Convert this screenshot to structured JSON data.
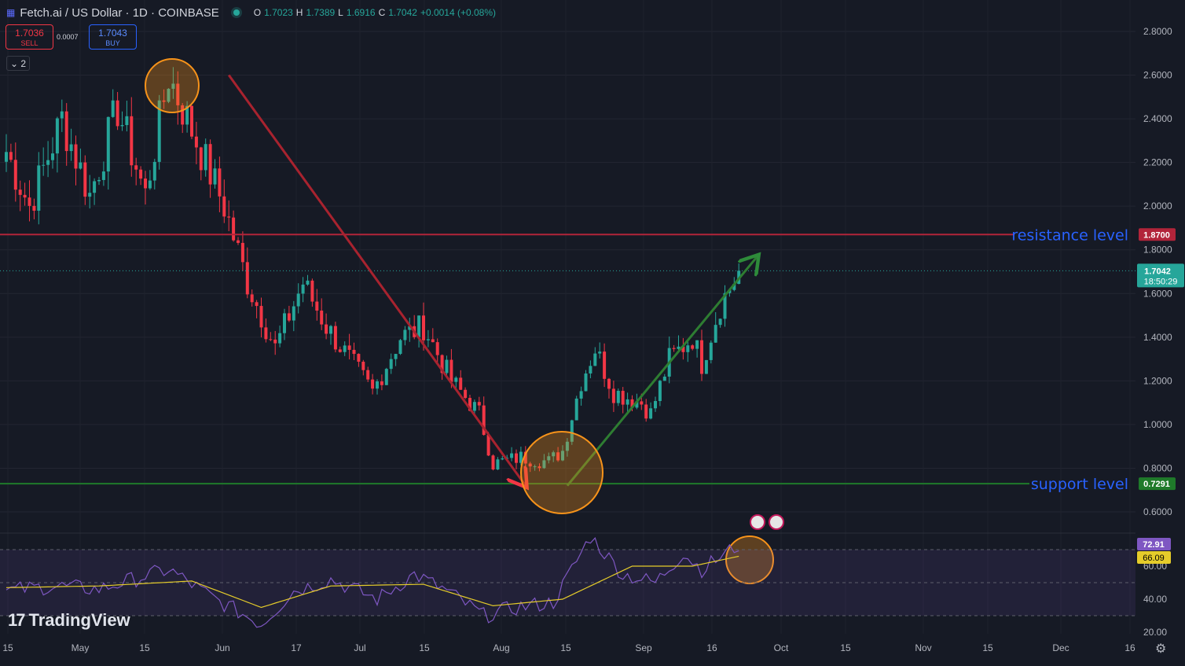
{
  "header": {
    "symbol_label": "Fetch.ai / US Dollar · 1D · COINBASE",
    "ohlc": [
      {
        "k": "O",
        "v": "1.7023"
      },
      {
        "k": "H",
        "v": "1.7389"
      },
      {
        "k": "L",
        "v": "1.6916"
      },
      {
        "k": "C",
        "v": "1.7042"
      }
    ],
    "change": "+0.0014 (+0.08%)",
    "sell_price": "1.7036",
    "sell_label": "SELL",
    "buy_price": "1.7043",
    "buy_label": "BUY",
    "spread": "0.0007",
    "indicator_count": "2",
    "logo_text": "TradingView"
  },
  "colors": {
    "background": "#161a25",
    "up": "#26a69a",
    "down": "#f23645",
    "resistance": "#b2243a",
    "support": "#1f7a2a",
    "annotation_blue": "#2962ff",
    "rsi": "#7e57c2",
    "rsi_ma": "#e5cc2a",
    "highlight_circle": "#f7931a"
  },
  "chart_data": {
    "type": "candlestick",
    "symbol": "Fetch.ai / US Dollar",
    "interval": "1D",
    "exchange": "COINBASE",
    "y_ticks": [
      "2.8000",
      "2.6000",
      "2.4000",
      "2.2000",
      "2.0000",
      "1.8000",
      "1.6000",
      "1.4000",
      "1.2000",
      "1.0000",
      "0.8000",
      "0.6000"
    ],
    "x_ticks": [
      "15",
      "May",
      "15",
      "Jun",
      "17",
      "Jul",
      "15",
      "Aug",
      "15",
      "Sep",
      "16",
      "Oct",
      "15",
      "Nov",
      "15",
      "Dec",
      "16"
    ],
    "ylim": [
      0.55,
      2.85
    ],
    "last_price": {
      "value": "1.7042",
      "countdown": "18:50:29"
    },
    "levels": [
      {
        "name": "resistance level",
        "value": 1.87,
        "label": "1.8700"
      },
      {
        "name": "support level",
        "value": 0.7291,
        "label": "0.7291"
      }
    ],
    "path_keypoints": [
      {
        "day": 0,
        "price": 2.25
      },
      {
        "day": 5,
        "price": 2.0
      },
      {
        "day": 12,
        "price": 2.4
      },
      {
        "day": 18,
        "price": 2.05
      },
      {
        "day": 24,
        "price": 2.45
      },
      {
        "day": 30,
        "price": 2.05
      },
      {
        "day": 35,
        "price": 2.6
      },
      {
        "day": 42,
        "price": 2.25
      },
      {
        "day": 47,
        "price": 2.0
      },
      {
        "day": 52,
        "price": 1.65
      },
      {
        "day": 58,
        "price": 1.35
      },
      {
        "day": 64,
        "price": 1.65
      },
      {
        "day": 69,
        "price": 1.45
      },
      {
        "day": 74,
        "price": 1.3
      },
      {
        "day": 79,
        "price": 1.15
      },
      {
        "day": 85,
        "price": 1.4
      },
      {
        "day": 90,
        "price": 1.45
      },
      {
        "day": 96,
        "price": 1.2
      },
      {
        "day": 102,
        "price": 1.05
      },
      {
        "day": 105,
        "price": 0.82
      },
      {
        "day": 111,
        "price": 0.85
      },
      {
        "day": 117,
        "price": 0.83
      },
      {
        "day": 120,
        "price": 0.88
      },
      {
        "day": 124,
        "price": 1.2
      },
      {
        "day": 127,
        "price": 1.35
      },
      {
        "day": 131,
        "price": 1.15
      },
      {
        "day": 137,
        "price": 1.1
      },
      {
        "day": 139,
        "price": 1.05
      },
      {
        "day": 143,
        "price": 1.3
      },
      {
        "day": 148,
        "price": 1.4
      },
      {
        "day": 150,
        "price": 1.28
      },
      {
        "day": 154,
        "price": 1.55
      },
      {
        "day": 158,
        "price": 1.7
      }
    ],
    "rsi": {
      "ticks": [
        "60.00",
        "40.00",
        "20.00"
      ],
      "ylim": [
        17,
        90
      ],
      "bands": [
        70,
        50,
        30
      ],
      "value": "72.91",
      "ma_value": "66.09",
      "keypoints": [
        {
          "day": 0,
          "rsi": 45
        },
        {
          "day": 10,
          "rsi": 48
        },
        {
          "day": 20,
          "rsi": 46
        },
        {
          "day": 35,
          "rsi": 58
        },
        {
          "day": 45,
          "rsi": 40
        },
        {
          "day": 55,
          "rsi": 25
        },
        {
          "day": 62,
          "rsi": 45
        },
        {
          "day": 70,
          "rsi": 52
        },
        {
          "day": 80,
          "rsi": 40
        },
        {
          "day": 88,
          "rsi": 55
        },
        {
          "day": 95,
          "rsi": 45
        },
        {
          "day": 103,
          "rsi": 30
        },
        {
          "day": 110,
          "rsi": 35
        },
        {
          "day": 118,
          "rsi": 38
        },
        {
          "day": 126,
          "rsi": 78
        },
        {
          "day": 133,
          "rsi": 55
        },
        {
          "day": 140,
          "rsi": 50
        },
        {
          "day": 146,
          "rsi": 68
        },
        {
          "day": 150,
          "rsi": 58
        },
        {
          "day": 158,
          "rsi": 72.9
        }
      ],
      "ma_keypoints": [
        {
          "day": 0,
          "rsi": 47
        },
        {
          "day": 20,
          "rsi": 48
        },
        {
          "day": 40,
          "rsi": 51
        },
        {
          "day": 55,
          "rsi": 35
        },
        {
          "day": 70,
          "rsi": 48
        },
        {
          "day": 90,
          "rsi": 49
        },
        {
          "day": 105,
          "rsi": 36
        },
        {
          "day": 120,
          "rsi": 40
        },
        {
          "day": 135,
          "rsi": 60
        },
        {
          "day": 148,
          "rsi": 60
        },
        {
          "day": 158,
          "rsi": 66
        }
      ]
    },
    "annotations": [
      {
        "type": "text",
        "text": "resistance level"
      },
      {
        "type": "text",
        "text": "support level"
      },
      {
        "type": "arrow",
        "color": "red",
        "direction": "down",
        "from_day": 48,
        "from_price": 2.6,
        "to_day": 112,
        "to_price": 0.72
      },
      {
        "type": "arrow",
        "color": "green",
        "direction": "up",
        "from_day": 121,
        "from_price": 0.72,
        "to_day": 162,
        "to_price": 1.77
      },
      {
        "type": "circle",
        "around": "local top",
        "day": 35,
        "price": 2.6
      },
      {
        "type": "circle",
        "around": "local bottom",
        "day": 111,
        "price": 0.8
      },
      {
        "type": "circle",
        "around": "RSI overbought",
        "day": 157,
        "rsi": 70
      }
    ]
  }
}
